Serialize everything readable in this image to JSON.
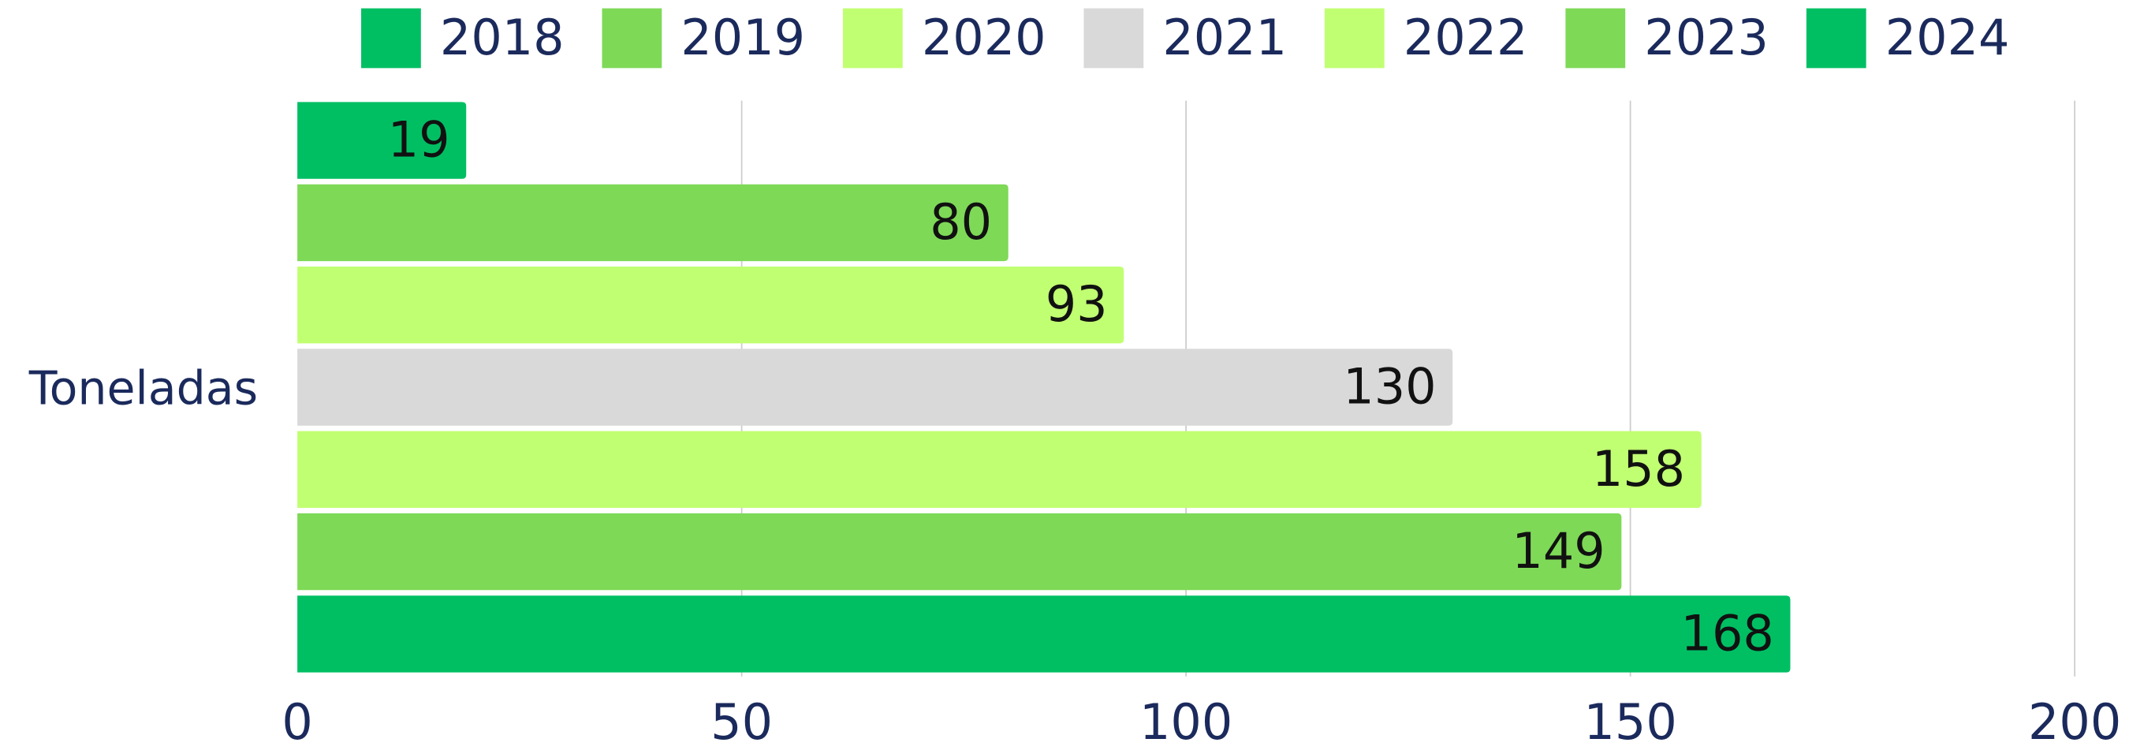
{
  "chart_data": {
    "type": "bar",
    "orientation": "horizontal",
    "categories": [
      "Toneladas"
    ],
    "series": [
      {
        "name": "2018",
        "color": "#00bf63",
        "values": [
          19
        ]
      },
      {
        "name": "2019",
        "color": "#7ed957",
        "values": [
          80
        ]
      },
      {
        "name": "2020",
        "color": "#c1ff72",
        "values": [
          93
        ]
      },
      {
        "name": "2021",
        "color": "#d9d9d9",
        "values": [
          130
        ]
      },
      {
        "name": "2022",
        "color": "#c1ff72",
        "values": [
          158
        ]
      },
      {
        "name": "2023",
        "color": "#7ed957",
        "values": [
          149
        ]
      },
      {
        "name": "2024",
        "color": "#00bf63",
        "values": [
          168
        ]
      }
    ],
    "xlim": [
      0,
      200
    ],
    "xticks": [
      0,
      50,
      100,
      150,
      200
    ],
    "grid": true,
    "legend": "top"
  }
}
